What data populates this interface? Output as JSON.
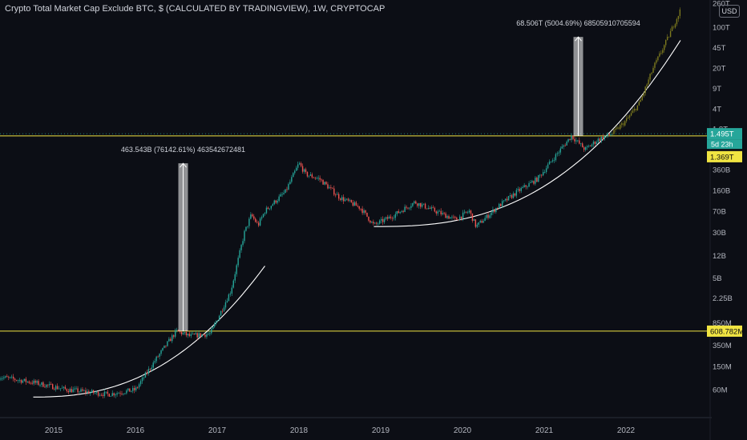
{
  "header": {
    "title": "Crypto Total Market Cap Exclude BTC, $ (CALCULATED BY TRADINGVIEW), 1W, CRYPTOCAP",
    "currency_button": "USD"
  },
  "price_badges": {
    "current": "1.495T",
    "countdown": "5d 23h",
    "level_high": "1.369T",
    "level_low": "608.782M"
  },
  "measure_labels": {
    "first": "463.543B (76142.61%) 463542672481",
    "second": "68.506T (5004.69%) 68505910705594"
  },
  "colors": {
    "background": "#0c0e15",
    "up_candle": "#26a69a",
    "down_candle": "#ef5350",
    "projection": "#7d7a1e",
    "level_line": "#f0e442",
    "curve": "#ffffff",
    "badge_current": "#26a69a"
  },
  "chart_data": {
    "type": "candlestick",
    "scale": "log",
    "x_ticks": [
      "2015",
      "2016",
      "2017",
      "2018",
      "2019",
      "2020",
      "2021",
      "2022"
    ],
    "y_ticks": [
      "260T",
      "100T",
      "45T",
      "20T",
      "9T",
      "4T",
      "1.8T",
      "360B",
      "160B",
      "70B",
      "30B",
      "12B",
      "5B",
      "2.25B",
      "850M",
      "350M",
      "150M",
      "60M"
    ],
    "ylim": [
      "40M",
      "260T"
    ],
    "price_path": [
      [
        "2014-05",
        100000000
      ],
      [
        "2014-10",
        80000000
      ],
      [
        "2015-03",
        60000000
      ],
      [
        "2015-09",
        50000000
      ],
      [
        "2016-01",
        60000000
      ],
      [
        "2016-04",
        200000000
      ],
      [
        "2016-07",
        608782000
      ],
      [
        "2016-09",
        500000000
      ],
      [
        "2016-12",
        550000000
      ],
      [
        "2017-03",
        3000000000
      ],
      [
        "2017-05",
        30000000000
      ],
      [
        "2017-06",
        60000000000
      ],
      [
        "2017-07",
        40000000000
      ],
      [
        "2017-08",
        70000000000
      ],
      [
        "2017-11",
        150000000000
      ],
      [
        "2018-01",
        463543000000
      ],
      [
        "2018-02",
        300000000000
      ],
      [
        "2018-04",
        250000000000
      ],
      [
        "2018-07",
        120000000000
      ],
      [
        "2018-10",
        80000000000
      ],
      [
        "2018-12",
        40000000000
      ],
      [
        "2019-03",
        60000000000
      ],
      [
        "2019-06",
        100000000000
      ],
      [
        "2019-09",
        70000000000
      ],
      [
        "2019-12",
        50000000000
      ],
      [
        "2020-02",
        70000000000
      ],
      [
        "2020-03",
        38000000000
      ],
      [
        "2020-06",
        80000000000
      ],
      [
        "2020-09",
        150000000000
      ],
      [
        "2020-12",
        250000000000
      ],
      [
        "2021-03",
        700000000000
      ],
      [
        "2021-05",
        1369000000000
      ],
      [
        "2021-07",
        800000000000
      ],
      [
        "2021-09",
        1200000000000
      ],
      [
        "2021-11",
        1495000000000
      ]
    ],
    "projection_path": [
      [
        "2021-11",
        1495000000000
      ],
      [
        "2022-01",
        2500000000000
      ],
      [
        "2022-03",
        5000000000000
      ],
      [
        "2022-05",
        20000000000000
      ],
      [
        "2022-07",
        60000000000000
      ],
      [
        "2022-09",
        200000000000000
      ]
    ],
    "levels": [
      {
        "value": 608782000,
        "label": "608.782M"
      },
      {
        "value": 1369000000000,
        "label": "1.369T"
      }
    ],
    "measures": [
      {
        "x": "2016-08",
        "from": 608782000,
        "to": 463543000000
      },
      {
        "x": "2021-06",
        "from": 1369000000000,
        "to": 68506000000000
      }
    ]
  }
}
